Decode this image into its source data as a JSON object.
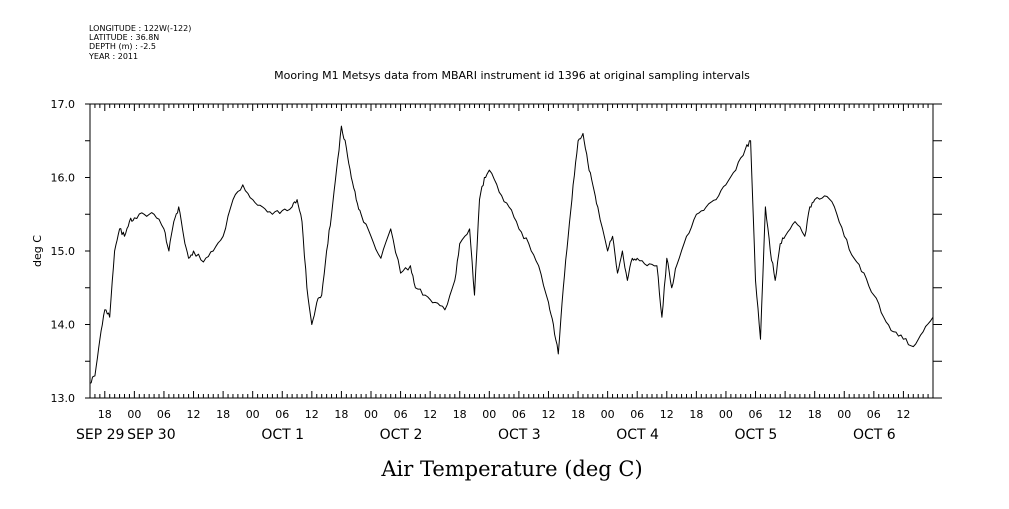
{
  "header": {
    "meta_lines": [
      "LONGITUDE : 122W(-122)",
      "LATITUDE : 36.8N",
      "DEPTH (m) : -2.5",
      "YEAR : 2011"
    ]
  },
  "chart_data": {
    "type": "line",
    "title": "Mooring M1 Metsys data from MBARI instrument id 1396 at original sampling intervals",
    "xlabel": "Air Temperature (deg C)",
    "ylabel": "deg C",
    "ylim": [
      13.0,
      17.0
    ],
    "y_ticks": [
      13.0,
      14.0,
      15.0,
      16.0,
      17.0
    ],
    "y_tick_labels": [
      "13.0",
      "14.0",
      "15.0",
      "16.0",
      "17.0"
    ],
    "xlim": [
      "2011-09-29T15:00",
      "2011-10-06T18:00"
    ],
    "hour_ticks": [
      "18",
      "00",
      "06",
      "12",
      "18",
      "00",
      "06",
      "12",
      "18",
      "00",
      "06",
      "12",
      "18",
      "00",
      "06",
      "12",
      "18",
      "00",
      "06",
      "12",
      "18",
      "00",
      "06",
      "12",
      "18",
      "00",
      "06",
      "12"
    ],
    "date_labels": [
      "SEP 29",
      "SEP 30",
      "OCT  1",
      "OCT  2",
      "OCT  3",
      "OCT  4",
      "OCT  5",
      "OCT  6"
    ],
    "grid": false,
    "series": [
      {
        "color": "#000000",
        "x": [
          "2011-09-29T15:00",
          "2011-09-29T16:00",
          "2011-09-29T17:00",
          "2011-09-29T18:00",
          "2011-09-29T19:00",
          "2011-09-29T20:00",
          "2011-09-29T21:00",
          "2011-09-29T22:00",
          "2011-09-29T23:00",
          "2011-09-30T00:00",
          "2011-09-30T02:00",
          "2011-09-30T04:00",
          "2011-09-30T06:00",
          "2011-09-30T07:00",
          "2011-09-30T08:00",
          "2011-09-30T09:00",
          "2011-09-30T10:00",
          "2011-09-30T11:00",
          "2011-09-30T12:00",
          "2011-09-30T14:00",
          "2011-09-30T16:00",
          "2011-09-30T18:00",
          "2011-09-30T20:00",
          "2011-09-30T22:00",
          "2011-10-01T00:00",
          "2011-10-01T02:00",
          "2011-10-01T04:00",
          "2011-10-01T06:00",
          "2011-10-01T08:00",
          "2011-10-01T09:00",
          "2011-10-01T10:00",
          "2011-10-01T11:00",
          "2011-10-01T12:00",
          "2011-10-01T13:00",
          "2011-10-01T14:00",
          "2011-10-01T15:00",
          "2011-10-01T16:00",
          "2011-10-01T17:00",
          "2011-10-01T18:00",
          "2011-10-01T19:00",
          "2011-10-01T20:00",
          "2011-10-01T21:00",
          "2011-10-01T22:00",
          "2011-10-02T00:00",
          "2011-10-02T02:00",
          "2011-10-02T04:00",
          "2011-10-02T06:00",
          "2011-10-02T08:00",
          "2011-10-02T09:00",
          "2011-10-02T11:00",
          "2011-10-02T13:00",
          "2011-10-02T15:00",
          "2011-10-02T17:00",
          "2011-10-02T18:00",
          "2011-10-02T20:00",
          "2011-10-02T21:00",
          "2011-10-02T22:00",
          "2011-10-02T23:00",
          "2011-10-03T00:00",
          "2011-10-03T02:00",
          "2011-10-03T04:00",
          "2011-10-03T06:00",
          "2011-10-03T08:00",
          "2011-10-03T10:00",
          "2011-10-03T12:00",
          "2011-10-03T13:00",
          "2011-10-03T14:00",
          "2011-10-03T15:00",
          "2011-10-03T16:00",
          "2011-10-03T17:00",
          "2011-10-03T18:00",
          "2011-10-03T19:00",
          "2011-10-03T20:00",
          "2011-10-03T21:00",
          "2011-10-03T22:00",
          "2011-10-04T00:00",
          "2011-10-04T01:00",
          "2011-10-04T02:00",
          "2011-10-04T03:00",
          "2011-10-04T04:00",
          "2011-10-04T05:00",
          "2011-10-04T06:00",
          "2011-10-04T08:00",
          "2011-10-04T10:00",
          "2011-10-04T11:00",
          "2011-10-04T12:00",
          "2011-10-04T13:00",
          "2011-10-04T14:00",
          "2011-10-04T16:00",
          "2011-10-04T18:00",
          "2011-10-04T20:00",
          "2011-10-04T22:00",
          "2011-10-05T00:00",
          "2011-10-05T02:00",
          "2011-10-05T04:00",
          "2011-10-05T05:00",
          "2011-10-05T06:00",
          "2011-10-05T07:00",
          "2011-10-05T08:00",
          "2011-10-05T09:00",
          "2011-10-05T10:00",
          "2011-10-05T11:00",
          "2011-10-05T12:00",
          "2011-10-05T14:00",
          "2011-10-05T16:00",
          "2011-10-05T17:00",
          "2011-10-05T18:00",
          "2011-10-05T20:00",
          "2011-10-05T22:00",
          "2011-10-06T00:00",
          "2011-10-06T02:00",
          "2011-10-06T04:00",
          "2011-10-06T06:00",
          "2011-10-06T08:00",
          "2011-10-06T10:00",
          "2011-10-06T12:00",
          "2011-10-06T14:00",
          "2011-10-06T16:00",
          "2011-10-06T18:00"
        ],
        "y": [
          13.2,
          13.3,
          13.8,
          14.2,
          14.1,
          15.0,
          15.3,
          15.2,
          15.4,
          15.45,
          15.5,
          15.5,
          15.3,
          15.0,
          15.4,
          15.6,
          15.2,
          14.9,
          15.0,
          14.85,
          15.0,
          15.2,
          15.7,
          15.9,
          15.7,
          15.6,
          15.5,
          15.55,
          15.6,
          15.7,
          15.4,
          14.5,
          14.0,
          14.3,
          14.4,
          15.0,
          15.5,
          16.1,
          16.7,
          16.4,
          16.0,
          15.7,
          15.5,
          15.2,
          14.9,
          15.3,
          14.7,
          14.8,
          14.5,
          14.4,
          14.3,
          14.2,
          14.6,
          15.1,
          15.3,
          14.4,
          15.7,
          16.0,
          16.1,
          15.8,
          15.6,
          15.3,
          15.1,
          14.8,
          14.3,
          14.0,
          13.6,
          14.5,
          15.2,
          15.9,
          16.5,
          16.6,
          16.2,
          15.9,
          15.6,
          15.0,
          15.2,
          14.7,
          15.0,
          14.6,
          14.9,
          14.9,
          14.8,
          14.8,
          14.1,
          14.9,
          14.5,
          14.8,
          15.2,
          15.5,
          15.6,
          15.7,
          15.9,
          16.1,
          16.4,
          16.5,
          14.6,
          13.8,
          15.6,
          15.0,
          14.6,
          15.1,
          15.2,
          15.4,
          15.2,
          15.6,
          15.7,
          15.75,
          15.6,
          15.2,
          14.9,
          14.7,
          14.4,
          14.1,
          13.9,
          13.8,
          13.7,
          13.9,
          14.1
        ]
      }
    ]
  }
}
